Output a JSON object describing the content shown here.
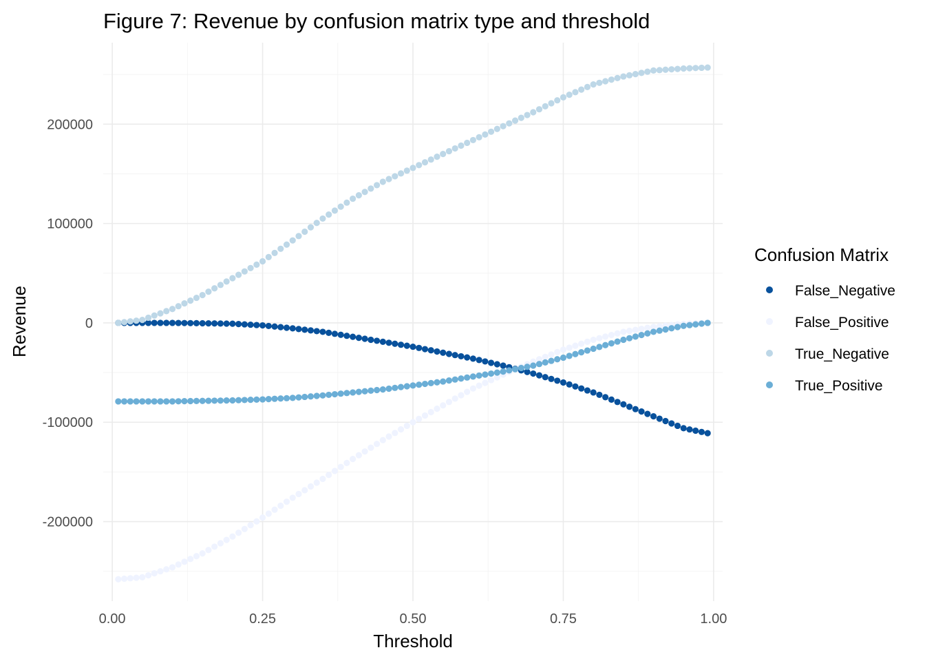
{
  "chart_data": {
    "type": "scatter",
    "title": "Figure 7: Revenue by confusion matrix type and threshold",
    "xlabel": "Threshold",
    "ylabel": "Revenue",
    "xlim": [
      -0.015,
      1.015
    ],
    "ylim": [
      -280000,
      282000
    ],
    "x_ticks": [
      0.0,
      0.25,
      0.5,
      0.75,
      1.0
    ],
    "x_tick_labels": [
      "0.00",
      "0.25",
      "0.50",
      "0.75",
      "1.00"
    ],
    "y_ticks": [
      -200000,
      -100000,
      0,
      100000,
      200000
    ],
    "y_tick_labels": [
      "-200000",
      "-100000",
      "0",
      "100000",
      "200000"
    ],
    "grid": true,
    "legend": {
      "title": "Confusion Matrix",
      "position": "right"
    },
    "x": {
      "start": 0.01,
      "end": 0.99,
      "step": 0.01
    },
    "series": [
      {
        "name": "False_Negative",
        "color": "#08519c",
        "anchors": [
          [
            0.01,
            0
          ],
          [
            0.1,
            0
          ],
          [
            0.2,
            -800
          ],
          [
            0.25,
            -2500
          ],
          [
            0.3,
            -5500
          ],
          [
            0.35,
            -9000
          ],
          [
            0.4,
            -14000
          ],
          [
            0.45,
            -19000
          ],
          [
            0.5,
            -24000
          ],
          [
            0.55,
            -30000
          ],
          [
            0.6,
            -36000
          ],
          [
            0.65,
            -43000
          ],
          [
            0.7,
            -51000
          ],
          [
            0.75,
            -60000
          ],
          [
            0.8,
            -70000
          ],
          [
            0.85,
            -82000
          ],
          [
            0.9,
            -94000
          ],
          [
            0.95,
            -106000
          ],
          [
            0.99,
            -111000
          ]
        ]
      },
      {
        "name": "False_Positive",
        "color": "#eff3ff",
        "anchors": [
          [
            0.01,
            -258000
          ],
          [
            0.05,
            -256000
          ],
          [
            0.1,
            -246000
          ],
          [
            0.15,
            -232000
          ],
          [
            0.2,
            -215000
          ],
          [
            0.25,
            -196000
          ],
          [
            0.3,
            -176000
          ],
          [
            0.35,
            -157000
          ],
          [
            0.4,
            -137000
          ],
          [
            0.45,
            -118000
          ],
          [
            0.5,
            -100000
          ],
          [
            0.55,
            -83000
          ],
          [
            0.6,
            -66000
          ],
          [
            0.65,
            -52000
          ],
          [
            0.7,
            -39000
          ],
          [
            0.75,
            -27000
          ],
          [
            0.8,
            -17000
          ],
          [
            0.85,
            -9000
          ],
          [
            0.9,
            -4000
          ],
          [
            0.95,
            -1000
          ],
          [
            0.99,
            0
          ]
        ]
      },
      {
        "name": "True_Negative",
        "color": "#bdd7e7",
        "anchors": [
          [
            0.01,
            0
          ],
          [
            0.05,
            3000
          ],
          [
            0.1,
            14000
          ],
          [
            0.15,
            28000
          ],
          [
            0.2,
            45000
          ],
          [
            0.25,
            62000
          ],
          [
            0.3,
            83000
          ],
          [
            0.35,
            105000
          ],
          [
            0.4,
            125000
          ],
          [
            0.45,
            142000
          ],
          [
            0.5,
            156000
          ],
          [
            0.55,
            170000
          ],
          [
            0.6,
            184000
          ],
          [
            0.65,
            198000
          ],
          [
            0.7,
            212000
          ],
          [
            0.75,
            227000
          ],
          [
            0.8,
            240000
          ],
          [
            0.85,
            248000
          ],
          [
            0.9,
            254000
          ],
          [
            0.95,
            256000
          ],
          [
            0.99,
            257000
          ]
        ]
      },
      {
        "name": "True_Positive",
        "color": "#6baed6",
        "anchors": [
          [
            0.01,
            -79000
          ],
          [
            0.1,
            -79000
          ],
          [
            0.2,
            -78000
          ],
          [
            0.25,
            -77000
          ],
          [
            0.3,
            -75500
          ],
          [
            0.35,
            -73000
          ],
          [
            0.4,
            -70000
          ],
          [
            0.45,
            -67000
          ],
          [
            0.5,
            -63000
          ],
          [
            0.55,
            -59000
          ],
          [
            0.6,
            -54000
          ],
          [
            0.65,
            -49000
          ],
          [
            0.7,
            -43000
          ],
          [
            0.75,
            -35000
          ],
          [
            0.8,
            -26000
          ],
          [
            0.85,
            -17000
          ],
          [
            0.9,
            -9000
          ],
          [
            0.95,
            -3000
          ],
          [
            0.99,
            0
          ]
        ]
      }
    ]
  }
}
